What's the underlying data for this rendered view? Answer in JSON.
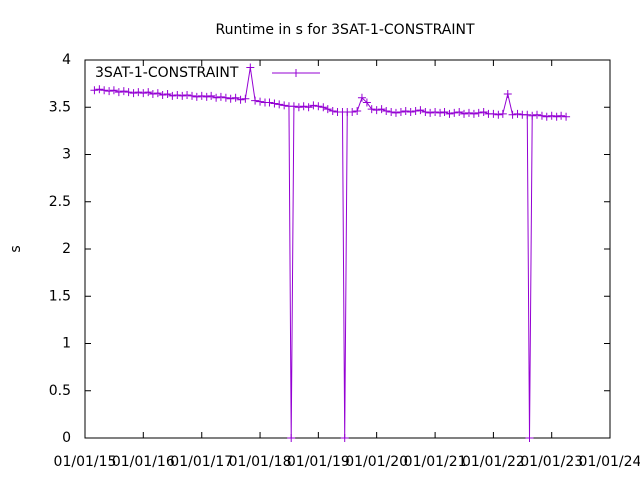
{
  "chart_data": {
    "type": "line",
    "title": "Runtime in s for 3SAT-1-CONSTRAINT",
    "ylabel": "s",
    "x": [
      "03/01/15",
      "04/01/15",
      "05/01/15",
      "06/01/15",
      "07/01/15",
      "08/01/15",
      "09/01/15",
      "10/01/15",
      "11/01/15",
      "12/01/15",
      "01/01/16",
      "02/01/16",
      "03/01/16",
      "04/01/16",
      "05/01/16",
      "06/01/16",
      "07/01/16",
      "08/01/16",
      "09/01/16",
      "10/01/16",
      "11/01/16",
      "12/01/16",
      "01/01/17",
      "02/01/17",
      "03/01/17",
      "04/01/17",
      "05/01/17",
      "06/01/17",
      "07/01/17",
      "08/01/17",
      "09/01/17",
      "10/01/17",
      "11/01/17",
      "12/01/17",
      "01/01/18",
      "02/01/18",
      "03/01/18",
      "04/01/18",
      "05/01/18",
      "06/01/18",
      "07/01/18",
      "07/15/18",
      "08/01/18",
      "09/01/18",
      "10/01/18",
      "11/01/18",
      "12/01/18",
      "01/01/19",
      "02/01/19",
      "03/01/19",
      "04/01/19",
      "05/01/19",
      "06/01/19",
      "06/15/19",
      "07/01/19",
      "08/01/19",
      "09/01/19",
      "10/01/19",
      "11/01/19",
      "12/01/19",
      "01/01/20",
      "02/01/20",
      "03/01/20",
      "04/01/20",
      "05/01/20",
      "06/01/20",
      "07/01/20",
      "08/01/20",
      "09/01/20",
      "10/01/20",
      "11/01/20",
      "12/01/20",
      "01/01/21",
      "02/01/21",
      "03/01/21",
      "04/01/21",
      "05/01/21",
      "06/01/21",
      "07/01/21",
      "08/01/21",
      "09/01/21",
      "10/01/21",
      "11/01/21",
      "12/01/21",
      "01/01/22",
      "02/01/22",
      "03/01/22",
      "04/01/22",
      "05/01/22",
      "06/01/22",
      "07/01/22",
      "08/01/22",
      "08/15/22",
      "09/01/22",
      "10/01/22",
      "11/01/22",
      "12/01/22",
      "01/01/23",
      "02/01/23",
      "03/01/23",
      "04/01/23"
    ],
    "series": [
      {
        "name": "3SAT-1-CONSTRAINT",
        "color": "#9400d3",
        "values": [
          3.68,
          3.69,
          3.68,
          3.67,
          3.68,
          3.66,
          3.67,
          3.66,
          3.65,
          3.66,
          3.65,
          3.66,
          3.64,
          3.65,
          3.63,
          3.64,
          3.62,
          3.63,
          3.62,
          3.63,
          3.62,
          3.61,
          3.62,
          3.61,
          3.62,
          3.6,
          3.61,
          3.6,
          3.59,
          3.6,
          3.58,
          3.59,
          3.92,
          3.57,
          3.56,
          3.55,
          3.55,
          3.54,
          3.53,
          3.52,
          3.51,
          0,
          3.51,
          3.5,
          3.51,
          3.5,
          3.52,
          3.51,
          3.5,
          3.48,
          3.46,
          3.45,
          3.45,
          0,
          3.45,
          3.45,
          3.46,
          3.6,
          3.55,
          3.48,
          3.47,
          3.48,
          3.46,
          3.45,
          3.44,
          3.45,
          3.46,
          3.45,
          3.46,
          3.47,
          3.45,
          3.44,
          3.45,
          3.44,
          3.45,
          3.43,
          3.44,
          3.45,
          3.43,
          3.44,
          3.43,
          3.44,
          3.45,
          3.43,
          3.43,
          3.42,
          3.43,
          3.64,
          3.42,
          3.43,
          3.42,
          3.42,
          0,
          3.41,
          3.42,
          3.41,
          3.4,
          3.41,
          3.4,
          3.41,
          3.4
        ]
      }
    ],
    "xlim": [
      "01/01/15",
      "01/01/24"
    ],
    "xticks": [
      "01/01/15",
      "01/01/16",
      "01/01/17",
      "01/01/18",
      "01/01/19",
      "01/01/20",
      "01/01/21",
      "01/01/22",
      "01/01/23",
      "01/01/24"
    ],
    "ylim": [
      0,
      4
    ],
    "yticks": [
      0,
      0.5,
      1,
      1.5,
      2,
      2.5,
      3,
      3.5,
      4
    ],
    "legend": "top-left"
  }
}
